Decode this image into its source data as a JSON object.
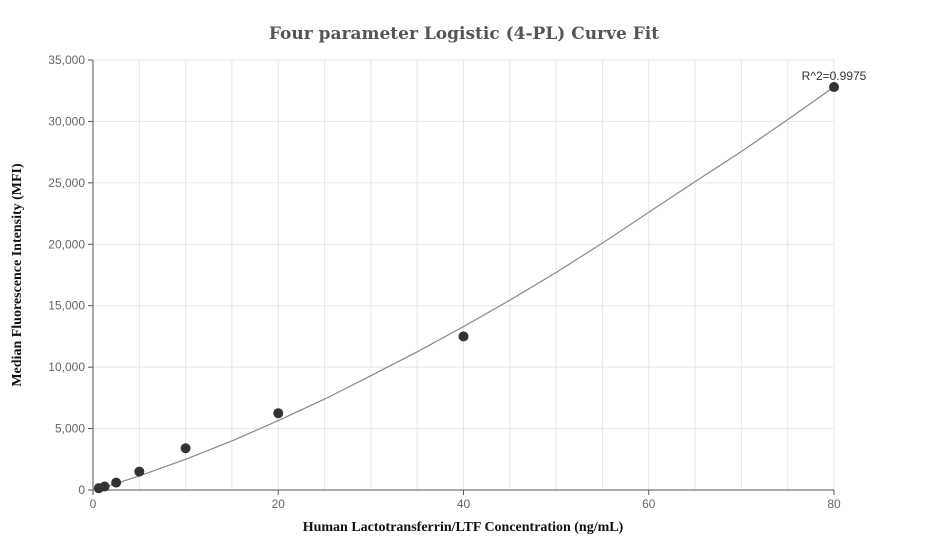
{
  "chart_data": {
    "type": "scatter",
    "title": "Four parameter Logistic (4-PL) Curve Fit",
    "xlabel": "Human Lactotransferrin/LTF Concentration (ng/mL)",
    "ylabel": "Median Fluorescence Intensity (MFI)",
    "xlim": [
      0,
      80
    ],
    "ylim": [
      0,
      35000
    ],
    "x_ticks": [
      0,
      20,
      40,
      60,
      80
    ],
    "y_ticks": [
      0,
      5000,
      10000,
      15000,
      20000,
      25000,
      30000,
      35000
    ],
    "x_tick_labels": [
      "0",
      "20",
      "40",
      "60",
      "80"
    ],
    "y_tick_labels": [
      "0",
      "5,000",
      "10,000",
      "15,000",
      "20,000",
      "25,000",
      "30,000",
      "35,000"
    ],
    "grid": true,
    "series": [
      {
        "type": "scatter",
        "x": [
          0.625,
          1.25,
          2.5,
          5,
          10,
          20,
          40,
          80
        ],
        "y": [
          150,
          280,
          600,
          1500,
          3400,
          6250,
          12500,
          32800
        ]
      },
      {
        "type": "line",
        "x": [
          0,
          2,
          5,
          10,
          15,
          20,
          25,
          30,
          35,
          40,
          45,
          50,
          55,
          60,
          65,
          70,
          75,
          80
        ],
        "y": [
          0,
          400,
          1150,
          2500,
          4000,
          5650,
          7400,
          9300,
          11250,
          13300,
          15450,
          17700,
          20100,
          22600,
          25100,
          27550,
          30150,
          32800
        ]
      }
    ],
    "annotations": [
      {
        "text": "R^2=0.9975",
        "x": 80,
        "y": 32800
      }
    ]
  }
}
